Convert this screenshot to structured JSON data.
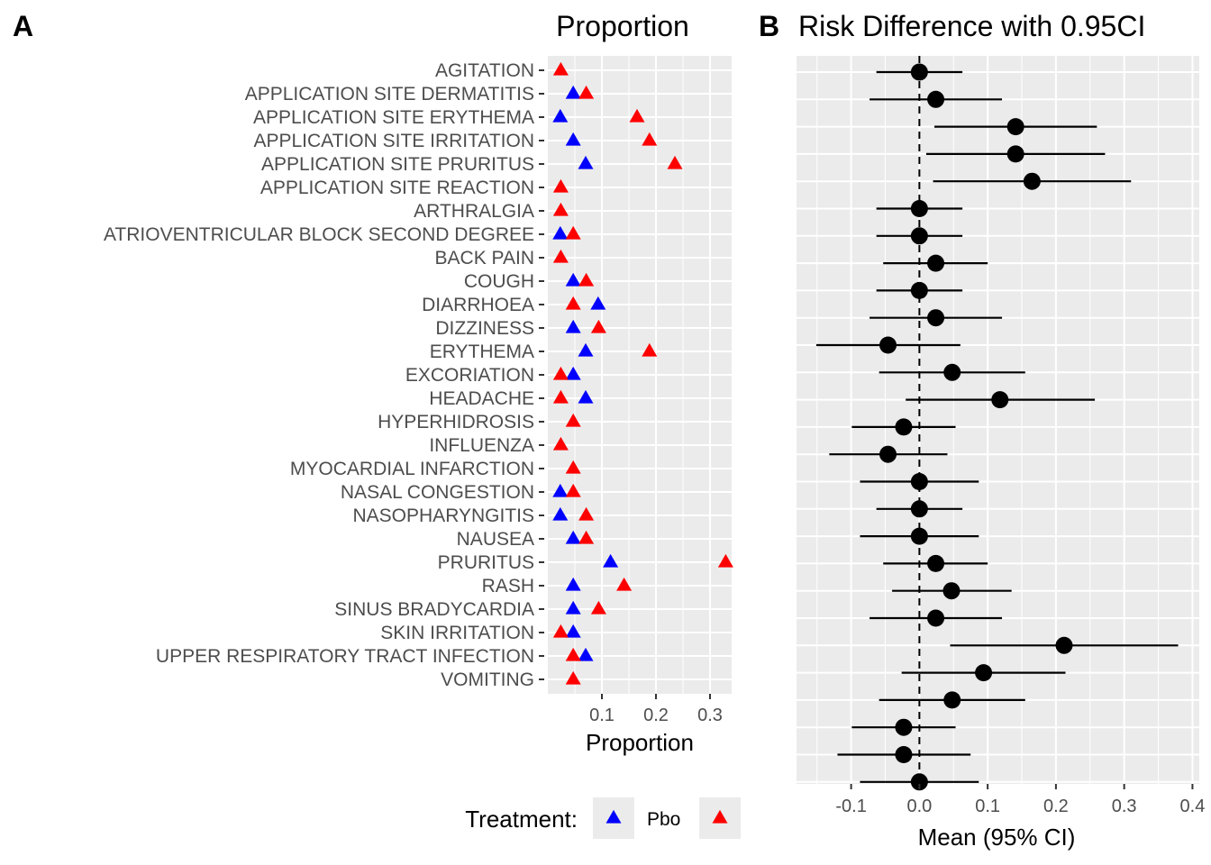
{
  "panels": {
    "a_letter": "A",
    "b_letter": "B",
    "a_title": "Proportion",
    "b_title": "Risk Difference with 0.95CI"
  },
  "legend": {
    "title": "Treatment:",
    "entries": [
      {
        "label": "Pbo",
        "color": "#0000ff"
      },
      {
        "label": "",
        "color": "#ff0000"
      }
    ]
  },
  "colors": {
    "panel_background": "#ebebeb",
    "grid": "#ffffff",
    "placebo": "#0000ff",
    "treatment": "#ff0000",
    "risk_points": "#000000"
  },
  "chart_data": [
    {
      "type": "scatter",
      "title": "Proportion",
      "xlabel": "Proportion",
      "ylabel": "",
      "marker": "triangle",
      "xlim": [
        0.0,
        0.34
      ],
      "xticks": [
        "0.1",
        "0.2",
        "0.3"
      ],
      "categories": [
        "AGITATION",
        "APPLICATION SITE DERMATITIS",
        "APPLICATION SITE ERYTHEMA",
        "APPLICATION SITE IRRITATION",
        "APPLICATION SITE PRURITUS",
        "APPLICATION SITE REACTION",
        "ARTHRALGIA",
        "ATRIOVENTRICULAR BLOCK SECOND DEGREE",
        "BACK PAIN",
        "COUGH",
        "DIARRHOEA",
        "DIZZINESS",
        "ERYTHEMA",
        "EXCORIATION",
        "HEADACHE",
        "HYPERHIDROSIS",
        "INFLUENZA",
        "MYOCARDIAL INFARCTION",
        "NASAL CONGESTION",
        "NASOPHARYNGITIS",
        "NAUSEA",
        "PRURITUS",
        "RASH",
        "SINUS BRADYCARDIA",
        "SKIN IRRITATION",
        "UPPER RESPIRATORY TRACT INFECTION",
        "VOMITING"
      ],
      "series": [
        {
          "name": "Pbo",
          "color": "#0000ff",
          "values": [
            null,
            0.047,
            0.023,
            0.047,
            0.07,
            null,
            null,
            0.023,
            null,
            0.047,
            0.093,
            0.047,
            0.07,
            0.047,
            0.07,
            null,
            null,
            null,
            0.023,
            0.023,
            0.047,
            0.116,
            0.047,
            0.047,
            0.047,
            0.07,
            null
          ]
        },
        {
          "name": "",
          "color": "#ff0000",
          "values": [
            0.024,
            0.071,
            0.165,
            0.188,
            0.235,
            0.024,
            0.024,
            0.047,
            0.024,
            0.071,
            0.047,
            0.094,
            0.188,
            0.024,
            0.024,
            0.047,
            0.024,
            0.047,
            0.047,
            0.071,
            0.071,
            0.329,
            0.141,
            0.094,
            0.024,
            0.047,
            0.047
          ]
        }
      ]
    },
    {
      "type": "scatter",
      "title": "Risk Difference with 0.95CI",
      "xlabel": "Mean (95% CI)",
      "ylabel": "",
      "xlim": [
        -0.18,
        0.41
      ],
      "xticks": [
        "-0.1",
        "0.0",
        "0.1",
        "0.2",
        "0.3",
        "0.4"
      ],
      "reference_line_x": 0.0,
      "rows": 27,
      "series": [
        {
          "name": "",
          "color": "#000000",
          "mean": [
            0.0,
            0.024,
            0.141,
            0.141,
            0.165,
            0.0,
            0.0,
            0.024,
            0.0,
            0.024,
            -0.046,
            0.048,
            0.118,
            -0.023,
            -0.046,
            0.0,
            0.0,
            0.0,
            0.024,
            0.047,
            0.024,
            0.212,
            0.094,
            0.048,
            -0.023,
            -0.023,
            0.0
          ],
          "lower": [
            -0.063,
            -0.073,
            0.022,
            0.01,
            0.02,
            -0.063,
            -0.063,
            -0.053,
            -0.063,
            -0.073,
            -0.151,
            -0.059,
            -0.02,
            -0.099,
            -0.132,
            -0.087,
            -0.063,
            -0.087,
            -0.053,
            -0.04,
            -0.073,
            0.045,
            -0.026,
            -0.059,
            -0.099,
            -0.12,
            -0.087
          ],
          "upper": [
            0.063,
            0.121,
            0.26,
            0.272,
            0.31,
            0.063,
            0.063,
            0.1,
            0.063,
            0.121,
            0.06,
            0.155,
            0.257,
            0.053,
            0.041,
            0.087,
            0.063,
            0.087,
            0.1,
            0.135,
            0.121,
            0.379,
            0.214,
            0.155,
            0.053,
            0.075,
            0.087
          ]
        }
      ]
    }
  ]
}
